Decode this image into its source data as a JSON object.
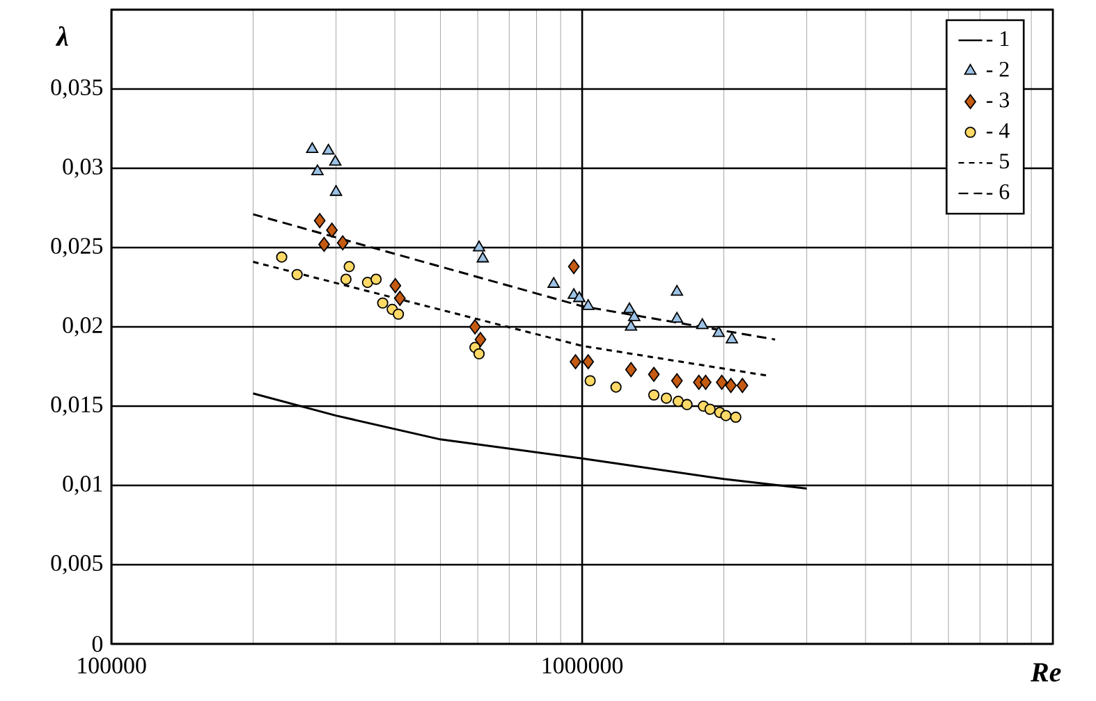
{
  "chart_data": {
    "type": "scatter",
    "xlabel": "Re",
    "ylabel": "λ",
    "log": "x",
    "grid": true,
    "legend": "top right",
    "xlim": [
      100000,
      10000000
    ],
    "xticks": [
      100000,
      1000000
    ],
    "ylim": [
      0,
      0.04
    ],
    "yticks": [
      {
        "value": 0,
        "label": "0"
      },
      {
        "value": 0.005,
        "label": "0,005"
      },
      {
        "value": 0.01,
        "label": "0,01"
      },
      {
        "value": 0.015,
        "label": "0,015"
      },
      {
        "value": 0.02,
        "label": "0,02"
      },
      {
        "value": 0.025,
        "label": "0,025"
      },
      {
        "value": 0.03,
        "label": "0,03"
      },
      {
        "value": 0.035,
        "label": "0,035"
      },
      {
        "value": 0.04,
        "label": null
      }
    ],
    "series": [
      {
        "name": "- 1",
        "type": "line",
        "color": "#000000",
        "line_style": "solid",
        "marker": "none",
        "x": [
          200000,
          300000,
          500000,
          1000000,
          2000000,
          3000000
        ],
        "values": [
          0.0158,
          0.0144,
          0.0129,
          0.0117,
          0.0104,
          0.0098
        ]
      },
      {
        "name": "- 2",
        "color": "#9dc3e6",
        "marker": "triangle",
        "x": [
          267000,
          289000,
          274000,
          299000,
          300000,
          604000,
          615000,
          870000,
          960000,
          986000,
          1030000,
          1260000,
          1290000,
          1270000,
          1590000,
          1590000,
          1800000,
          1950000,
          2080000
        ],
        "values": [
          0.0312,
          0.0311,
          0.0298,
          0.0304,
          0.0285,
          0.025,
          0.0243,
          0.0227,
          0.022,
          0.0218,
          0.0213,
          0.0211,
          0.0206,
          0.02,
          0.0222,
          0.0205,
          0.0201,
          0.0196,
          0.0192
        ]
      },
      {
        "name": "- 3",
        "color": "#c55a11",
        "marker": "diamond",
        "x": [
          277000,
          294000,
          283000,
          310000,
          326000,
          401000,
          410000,
          592000,
          608000,
          960000,
          968000,
          1030000,
          1270000,
          1420000,
          1590000,
          1770000,
          1830000,
          1980000,
          2070000,
          2190000
        ],
        "values": [
          0.0267,
          0.0261,
          0.0252,
          0.0253,
          null,
          0.0226,
          0.0218,
          0.02,
          0.0192,
          0.0238,
          0.0178,
          0.0178,
          0.0173,
          0.017,
          0.0166,
          0.0165,
          0.0165,
          0.0165,
          0.0163,
          0.0163
        ]
      },
      {
        "name": "- 4",
        "color": "#ffd966",
        "marker": "circle",
        "x": [
          230000,
          248000,
          320000,
          315000,
          350000,
          365000,
          377000,
          395000,
          407000,
          592000,
          604000,
          1040000,
          1180000,
          1420000,
          1510000,
          1600000,
          1670000,
          1810000,
          1870000,
          1960000,
          2020000,
          2120000
        ],
        "values": [
          0.0244,
          0.0233,
          0.0238,
          0.023,
          0.0228,
          0.023,
          0.0215,
          0.0211,
          0.0208,
          0.0187,
          0.0183,
          0.0166,
          0.0162,
          0.0157,
          0.0155,
          0.0153,
          0.0151,
          0.015,
          0.0148,
          0.0146,
          0.0144,
          0.0143
        ]
      },
      {
        "name": "- 5",
        "type": "line",
        "color": "#000000",
        "line_style": "dashed",
        "marker": "none",
        "x": [
          200000,
          1000000,
          2500000
        ],
        "values": [
          0.0241,
          0.0188,
          0.0169
        ]
      },
      {
        "name": "- 6",
        "type": "line",
        "color": "#000000",
        "line_style": "dashed",
        "marker": "none",
        "x": [
          200000,
          1000000,
          2570000
        ],
        "values": [
          0.0271,
          0.0213,
          0.0192
        ]
      }
    ]
  }
}
